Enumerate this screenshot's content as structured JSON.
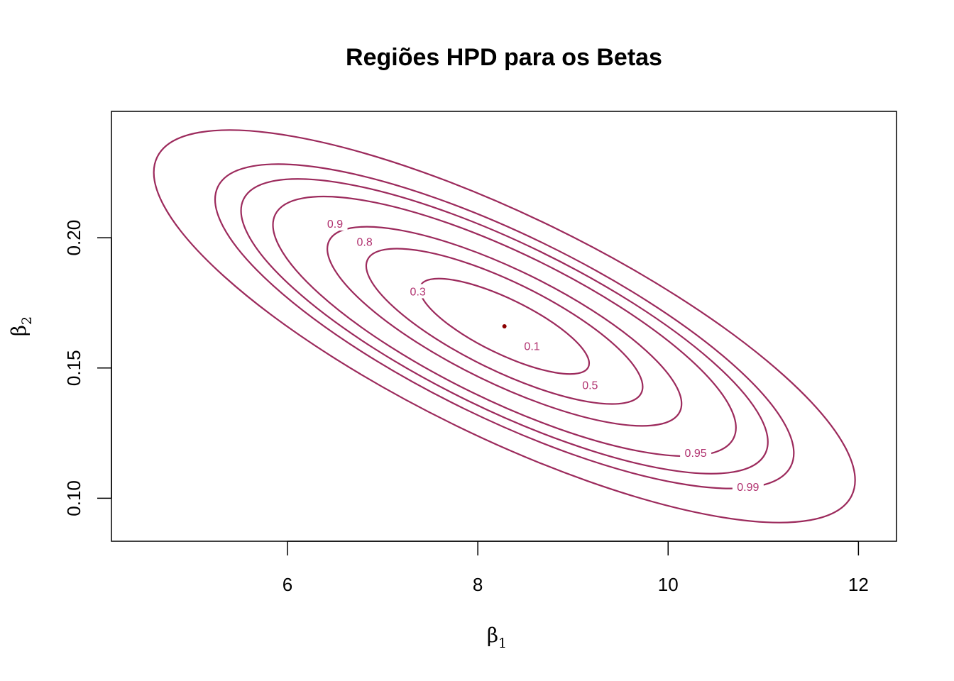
{
  "chart_data": {
    "type": "contour",
    "title": "Regiões HPD para os Betas",
    "xlabel": {
      "symbol": "β",
      "sub": "1"
    },
    "ylabel": {
      "symbol": "β",
      "sub": "2"
    },
    "xlim": [
      4.15,
      12.4
    ],
    "ylim": [
      0.0835,
      0.2485
    ],
    "x_ticks": [
      6,
      8,
      10,
      12
    ],
    "x_tick_labels": [
      "6",
      "8",
      "10",
      "12"
    ],
    "y_ticks": [
      0.1,
      0.15,
      0.2
    ],
    "y_tick_labels": [
      "0.10",
      "0.15",
      "0.20"
    ],
    "line_color": "#9c2a5c",
    "label_color": "#b0306e",
    "point_color": "#8b0000",
    "center": {
      "x": 8.28,
      "y": 0.166
    },
    "levels": [
      {
        "label": "0.1",
        "rx": 0.98,
        "ry": 0.0105,
        "label_x": 8.57,
        "label_y": 0.1585
      },
      {
        "label": "0.3",
        "rx": 1.6,
        "ry": 0.017,
        "label_x": 7.37,
        "label_y": 0.1795
      },
      {
        "label": "0.5",
        "rx": 2.05,
        "ry": 0.0218,
        "label_x": 9.18,
        "label_y": 0.1435
      },
      {
        "label": "0.8",
        "rx": 2.68,
        "ry": 0.0282,
        "label_x": 6.81,
        "label_y": 0.1985
      },
      {
        "label": "0.9",
        "rx": 3.05,
        "ry": 0.0318,
        "label_x": 6.5,
        "label_y": 0.2055
      },
      {
        "label": "0.95",
        "rx": 3.35,
        "ry": 0.0352,
        "label_x": 10.29,
        "label_y": 0.1175
      },
      {
        "label": "0.99",
        "rx": 4.06,
        "ry": 0.0424,
        "label_x": 10.84,
        "label_y": 0.1045
      }
    ]
  }
}
